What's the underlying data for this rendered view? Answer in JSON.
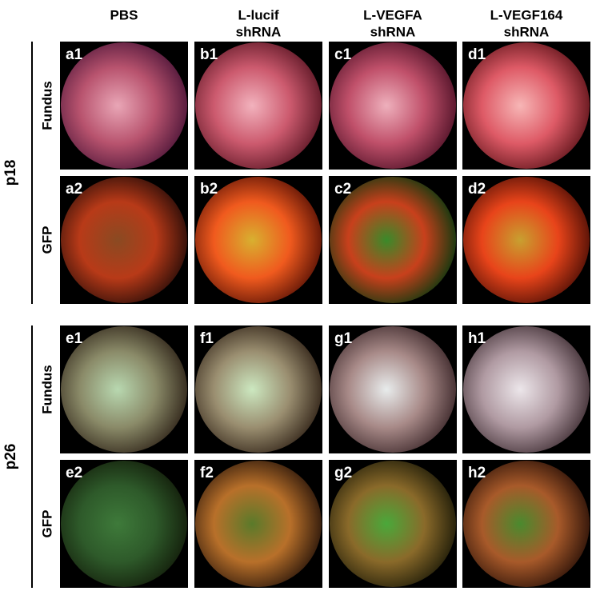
{
  "columns": [
    {
      "lines": [
        "PBS"
      ]
    },
    {
      "lines": [
        "L-lucif",
        "shRNA"
      ]
    },
    {
      "lines": [
        "L-VEGFA",
        "shRNA"
      ]
    },
    {
      "lines": [
        "L-VEGF164",
        "shRNA"
      ]
    }
  ],
  "groups": [
    {
      "label": "p18",
      "rows": [
        {
          "label": "Fundus",
          "panels": [
            "a1",
            "b1",
            "c1",
            "d1"
          ]
        },
        {
          "label": "GFP",
          "panels": [
            "a2",
            "b2",
            "c2",
            "d2"
          ]
        }
      ]
    },
    {
      "label": "p26",
      "rows": [
        {
          "label": "Fundus",
          "panels": [
            "e1",
            "f1",
            "g1",
            "h1"
          ]
        },
        {
          "label": "GFP",
          "panels": [
            "e2",
            "f2",
            "g2",
            "h2"
          ]
        }
      ]
    }
  ]
}
